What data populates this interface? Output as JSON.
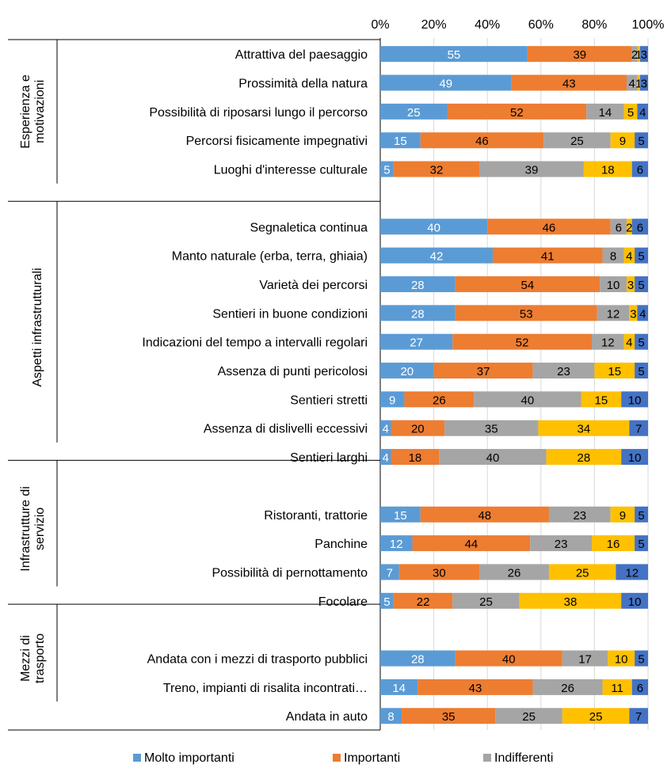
{
  "chart_data": {
    "type": "bar",
    "orientation": "horizontal",
    "stacked": "percent",
    "xlim": [
      0,
      100
    ],
    "x_ticks": [
      "0%",
      "20%",
      "40%",
      "60%",
      "80%",
      "100%"
    ],
    "x_axis_position": "top",
    "grid": true,
    "legend_position": "bottom",
    "groups": [
      {
        "label": "Esperienza e motivazioni",
        "label_lines": [
          "Esperienza e",
          "motivazioni"
        ],
        "start": 0,
        "end": 4
      },
      {
        "label": "Aspetti infrastrutturali",
        "label_lines": [
          "Aspetti infrastrutturali"
        ],
        "start": 6,
        "end": 13
      },
      {
        "label": "Infrastrutture di servizio",
        "label_lines": [
          "Infrastrutture di",
          "servizio"
        ],
        "start": 15,
        "end": 18
      },
      {
        "label": "Mezzi di trasporto",
        "label_lines": [
          "Mezzi di",
          "trasporto"
        ],
        "start": 20,
        "end": 22
      }
    ],
    "categories": [
      "Attrattiva del paesaggio",
      "Prossimità della natura",
      "Possibilità di riposarsi lungo il percorso",
      "Percorsi fisicamente impegnativi",
      "Luoghi d'interesse culturale",
      "",
      "Segnaletica continua",
      "Manto naturale (erba, terra, ghiaia)",
      "Varietà dei percorsi",
      "Sentieri in buone condizioni",
      "Indicazioni del tempo a intervalli regolari",
      "Assenza di punti pericolosi",
      "Sentieri stretti",
      "Assenza di dislivelli eccessivi",
      "Sentieri larghi",
      "",
      "Ristoranti, trattorie",
      "Panchine",
      "Possibilità di pernottamento",
      "Focolare",
      "",
      "Andata con i mezzi di trasporto pubblici",
      "Treno, impianti di risalita incontrati…",
      "Andata in auto"
    ],
    "series": [
      {
        "name": "Molto importanti",
        "color": "#5b9bd5",
        "label_color": "#ffffff",
        "values": [
          55,
          49,
          25,
          15,
          5,
          null,
          40,
          42,
          28,
          28,
          27,
          20,
          9,
          4,
          4,
          null,
          15,
          12,
          7,
          5,
          null,
          28,
          14,
          8
        ]
      },
      {
        "name": "Importanti",
        "color": "#ed7d31",
        "label_color": "#000000",
        "values": [
          39,
          43,
          52,
          46,
          32,
          null,
          46,
          41,
          54,
          53,
          52,
          37,
          26,
          20,
          18,
          null,
          48,
          44,
          30,
          22,
          null,
          40,
          43,
          35
        ]
      },
      {
        "name": "Indifferenti",
        "color": "#a5a5a5",
        "label_color": "#000000",
        "values": [
          2,
          4,
          14,
          25,
          39,
          null,
          6,
          8,
          10,
          12,
          12,
          23,
          40,
          35,
          40,
          null,
          23,
          23,
          26,
          25,
          null,
          17,
          26,
          25
        ]
      },
      {
        "name": "",
        "color": "#ffc000",
        "label_color": "#000000",
        "values": [
          1,
          1,
          5,
          9,
          18,
          null,
          2,
          4,
          3,
          3,
          4,
          15,
          15,
          34,
          28,
          null,
          9,
          16,
          25,
          38,
          null,
          10,
          11,
          25
        ]
      },
      {
        "name": "",
        "color": "#4472c4",
        "label_color": "#000000",
        "values": [
          3,
          3,
          4,
          5,
          6,
          null,
          6,
          5,
          5,
          4,
          5,
          5,
          10,
          7,
          10,
          null,
          5,
          5,
          12,
          10,
          null,
          5,
          6,
          7
        ]
      }
    ]
  }
}
